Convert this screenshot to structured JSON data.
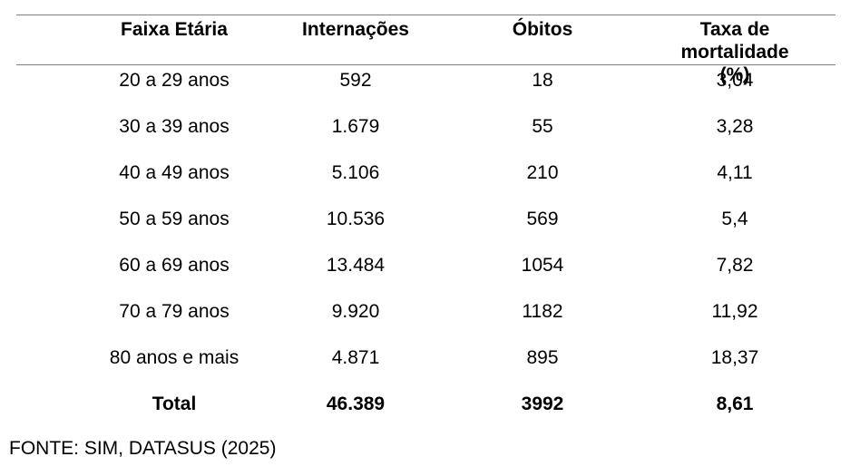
{
  "page": {
    "background_color": "#ffffff",
    "rule_color": "#808080",
    "text_color": "#000000"
  },
  "table": {
    "headers": [
      "Faixa Etária",
      "Internações",
      "Óbitos",
      "Taxa de\nmortalidade (%)"
    ],
    "rows": [
      [
        "20 a 29 anos",
        "592",
        "18",
        "3,04"
      ],
      [
        "30 a 39 anos",
        "1.679",
        "55",
        "3,28"
      ],
      [
        "40 a 49 anos",
        "5.106",
        "210",
        "4,11"
      ],
      [
        "50 a 59 anos",
        "10.536",
        "569",
        "5,4"
      ],
      [
        "60 a 69 anos",
        "13.484",
        "1054",
        "7,82"
      ],
      [
        "70 a 79 anos",
        "9.920",
        "1182",
        "11,92"
      ],
      [
        "80 anos e mais",
        "4.871",
        "895",
        "18,37"
      ]
    ],
    "total": [
      "Total",
      "46.389",
      "3992",
      "8,61"
    ]
  },
  "footer": {
    "source_label": "FONTE: SIM, DATASUS (2025)"
  }
}
